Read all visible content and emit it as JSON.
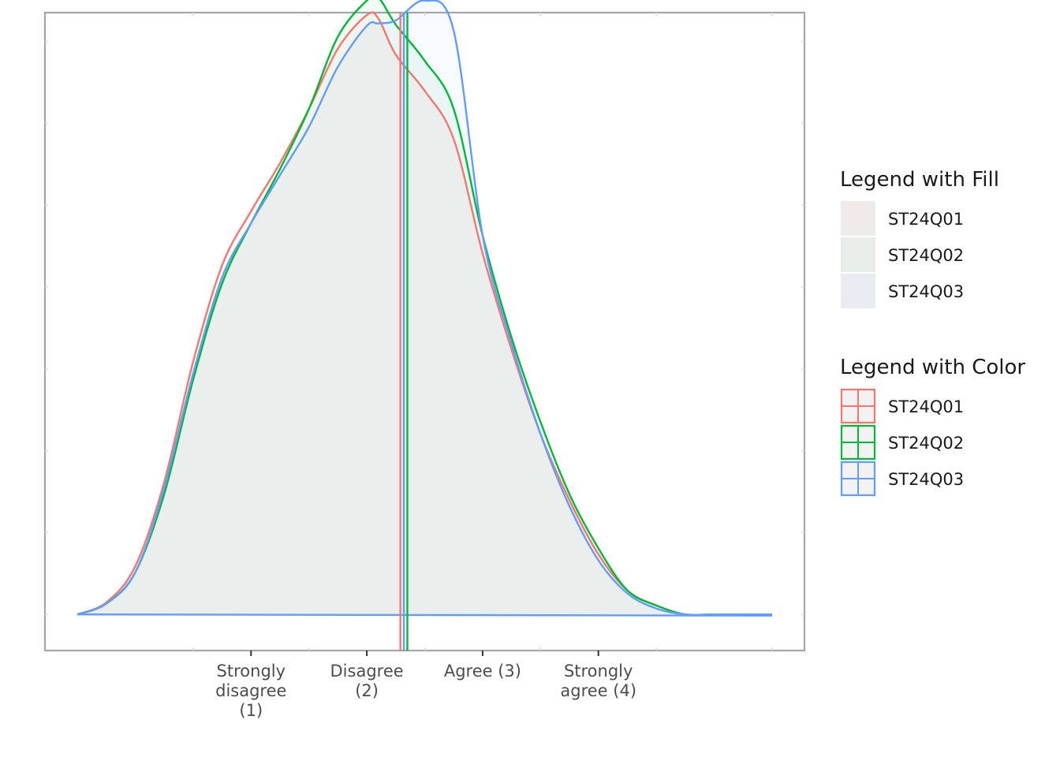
{
  "chart_data": {
    "type": "area",
    "title": "",
    "xlabel": "",
    "ylabel": "",
    "x_ticks": [
      {
        "value": 1,
        "label": [
          "Strongly",
          "disagree",
          "(1)"
        ]
      },
      {
        "value": 2,
        "label": [
          "Disagree",
          "(2)"
        ]
      },
      {
        "value": 3,
        "label": [
          "Agree (3)"
        ]
      },
      {
        "value": 4,
        "label": [
          "Strongly",
          "agree (4)"
        ]
      }
    ],
    "xlim": [
      -0.78,
      5.78
    ],
    "ylim": [
      -0.06,
      1.0
    ],
    "y_ticks_labeled": false,
    "grid": false,
    "legend_position": "right",
    "x": [
      -0.5,
      -0.25,
      0.0,
      0.25,
      0.5,
      0.75,
      1.0,
      1.25,
      1.5,
      1.75,
      2.0,
      2.1,
      2.25,
      2.5,
      2.75,
      3.0,
      3.25,
      3.5,
      3.75,
      4.0,
      4.25,
      4.5,
      4.75,
      5.0,
      5.25,
      5.5
    ],
    "series": [
      {
        "name": "ST24Q01",
        "color": "#F8766D",
        "fill": "#F8766D",
        "mean": 2.29,
        "values": [
          0.0,
          0.02,
          0.08,
          0.22,
          0.42,
          0.58,
          0.67,
          0.75,
          0.84,
          0.94,
          0.996,
          0.99,
          0.93,
          0.87,
          0.79,
          0.6,
          0.44,
          0.3,
          0.19,
          0.1,
          0.04,
          0.015,
          0.0,
          0.0,
          0.0,
          0.0
        ]
      },
      {
        "name": "ST24Q02",
        "color": "#00BA38",
        "fill": "#00BA38",
        "mean": 2.35,
        "values": [
          0.0,
          0.018,
          0.07,
          0.2,
          0.39,
          0.55,
          0.65,
          0.74,
          0.84,
          0.96,
          1.02,
          1.025,
          0.98,
          0.92,
          0.84,
          0.63,
          0.46,
          0.32,
          0.2,
          0.11,
          0.04,
          0.015,
          0.0,
          0.0,
          0.0,
          0.0
        ]
      },
      {
        "name": "ST24Q03",
        "color": "#619CFF",
        "fill": "#619CFF",
        "mean": 2.32,
        "values": [
          0.0,
          0.018,
          0.07,
          0.21,
          0.4,
          0.56,
          0.65,
          0.73,
          0.81,
          0.91,
          0.978,
          0.982,
          0.987,
          1.02,
          0.97,
          0.63,
          0.45,
          0.3,
          0.18,
          0.09,
          0.035,
          0.01,
          0.0,
          0.0,
          0.0,
          0.0
        ]
      }
    ],
    "legend_fill_title": "Legend with Fill",
    "legend_color_title": "Legend with Color"
  }
}
